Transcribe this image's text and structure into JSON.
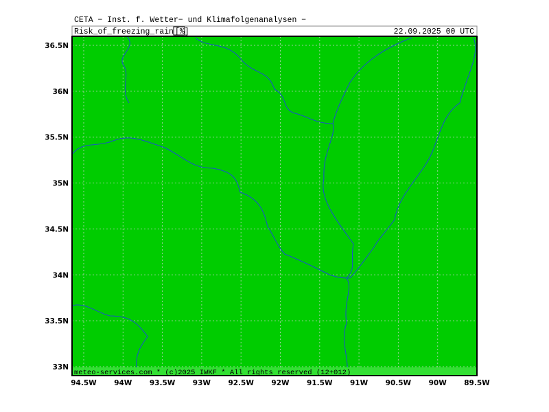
{
  "header": {
    "title": "CETA − Inst. f. Wetter− und Klimafolgenanalysen −",
    "parameter": "Risk_of_freezing_rain",
    "unit": "[%]",
    "datetime": "22.09.2025 00 UTC"
  },
  "map": {
    "lat_labels": [
      "36.5N",
      "36N",
      "35.5N",
      "35N",
      "34.5N",
      "34N",
      "33.5N",
      "33N"
    ],
    "lon_labels": [
      "94.5W",
      "94W",
      "93.5W",
      "93W",
      "92.5W",
      "92W",
      "91.5W",
      "91W",
      "90.5W",
      "90W",
      "89.5W"
    ],
    "footer": "meteo-services.com * (c)2025 IWKF * All rights reserved (12+012)"
  }
}
